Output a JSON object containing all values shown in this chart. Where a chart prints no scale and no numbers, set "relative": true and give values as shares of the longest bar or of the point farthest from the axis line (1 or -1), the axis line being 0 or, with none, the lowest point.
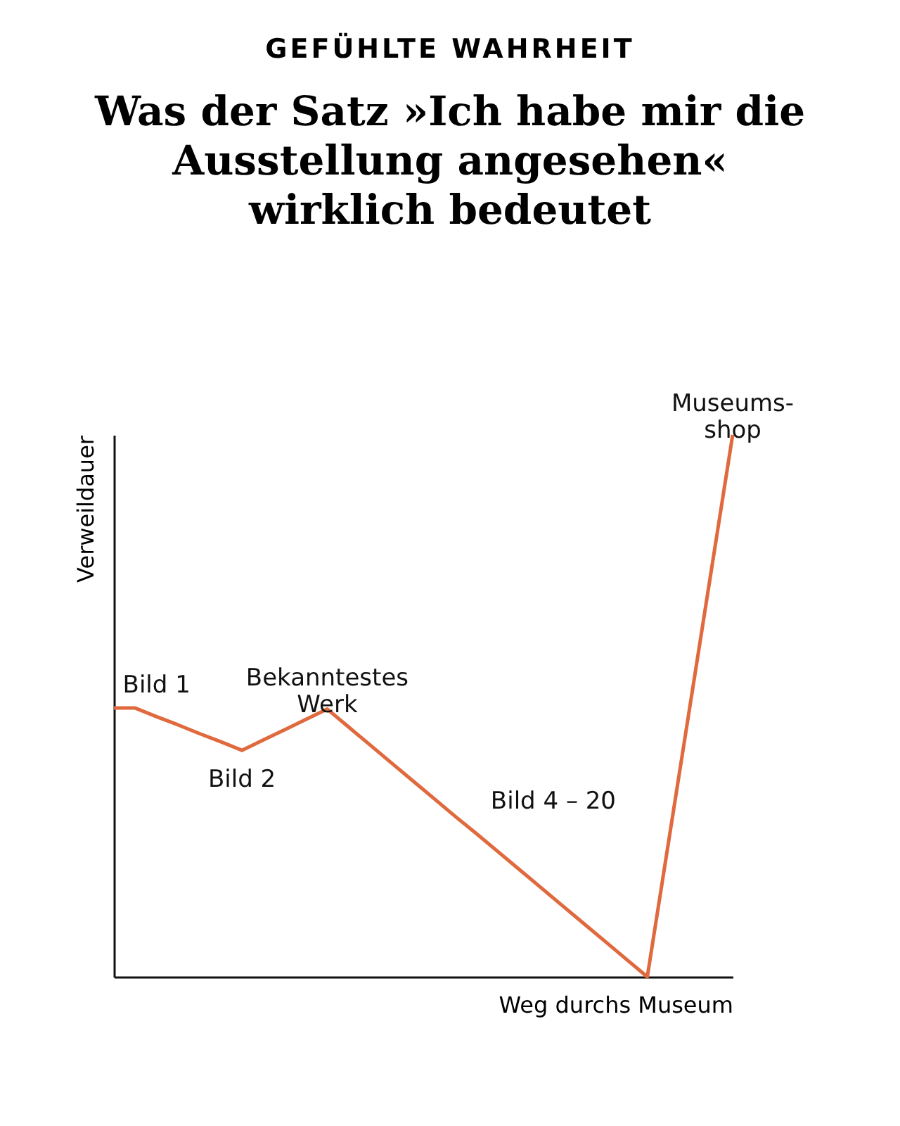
{
  "chart_data": {
    "type": "line",
    "subtitle": "GEFÜHLTE WAHRHEIT",
    "title": "Was der Satz »Ich habe mir die Ausstellung angesehen« wirklich bedeutet",
    "xlabel": "Weg durchs Museum",
    "ylabel": "Verweildauer",
    "relative": true,
    "tick_labels": false,
    "categories": [
      null,
      null,
      null,
      null,
      null,
      null,
      null,
      null,
      null,
      null,
      null,
      null,
      null,
      null,
      null,
      null,
      null,
      null,
      null,
      null,
      null,
      null,
      null,
      null,
      null,
      null,
      null,
      null,
      null,
      null
    ],
    "series": [
      {
        "color": "#e0693e",
        "values": [
          0.496,
          0.496,
          0.48,
          0.465,
          0.449,
          0.434,
          0.418,
          0.437,
          0.456,
          0.475,
          0.494,
          0.461,
          0.428,
          0.395,
          0.362,
          0.329,
          0.296,
          0.264,
          0.231,
          0.198,
          0.165,
          0.132,
          0.099,
          0.066,
          0.033,
          0,
          0.25,
          0.5,
          0.75,
          1
        ]
      }
    ],
    "annotations": [
      "Bild 1",
      "Bild 2",
      "Bekanntestes\nWerk",
      "Bild 4 – 20",
      "Museums-\nshop"
    ]
  }
}
